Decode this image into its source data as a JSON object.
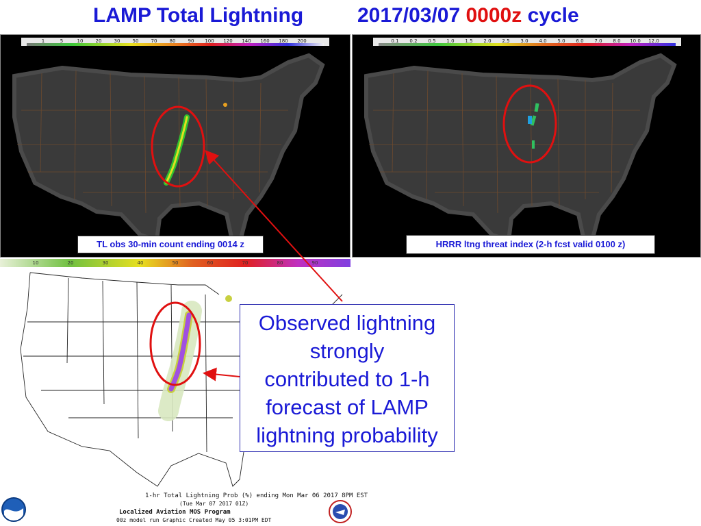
{
  "title": {
    "left": "LAMP Total Lightning",
    "date": "2017/03/07",
    "cycle_time": "0000z",
    "cycle_word": "cycle"
  },
  "panels": {
    "left": {
      "caption": "TL obs 30-min count  ending 0014 z",
      "scale_labels": [
        "1",
        "5",
        "10",
        "20",
        "30",
        "50",
        "70",
        "80",
        "90",
        "100",
        "120",
        "140",
        "160",
        "180",
        "200"
      ]
    },
    "right": {
      "caption": "HRRR ltng threat index (2-h fcst valid 0100 z)",
      "scale_labels": [
        "0.1",
        "0.2",
        "0.5",
        "1.0",
        "1.5",
        "2.0",
        "2.5",
        "3.0",
        "4.0",
        "5.0",
        "6.0",
        "7.0",
        "8.0",
        "10.0",
        "12.0"
      ]
    },
    "lamp": {
      "scale_labels": [
        "10",
        "20",
        "30",
        "40",
        "50",
        "60",
        "70",
        "80",
        "90"
      ]
    }
  },
  "callout": {
    "text_lines": [
      "Observed lightning",
      "strongly",
      "contributed to 1-h",
      "forecast of LAMP",
      "lightning probability"
    ]
  },
  "footer": {
    "line1": "1-hr Total Lightning Prob (%) ending Mon Mar 06 2017  8PM EST",
    "line2": "(Tue Mar 07 2017 01Z)",
    "line3": "Localized Aviation MOS Program",
    "line4": "00z model run Graphic Created May 05  3:01PM EDT"
  },
  "colors": {
    "title_blue": "#1a1ad6",
    "cycle_red": "#e01010",
    "highlight_red": "#e01010",
    "map_land_dark": "#3a3a3a",
    "map_border": "#7a4a2a"
  },
  "icons": [
    "noaa-logo-icon",
    "nws-logo-icon"
  ]
}
